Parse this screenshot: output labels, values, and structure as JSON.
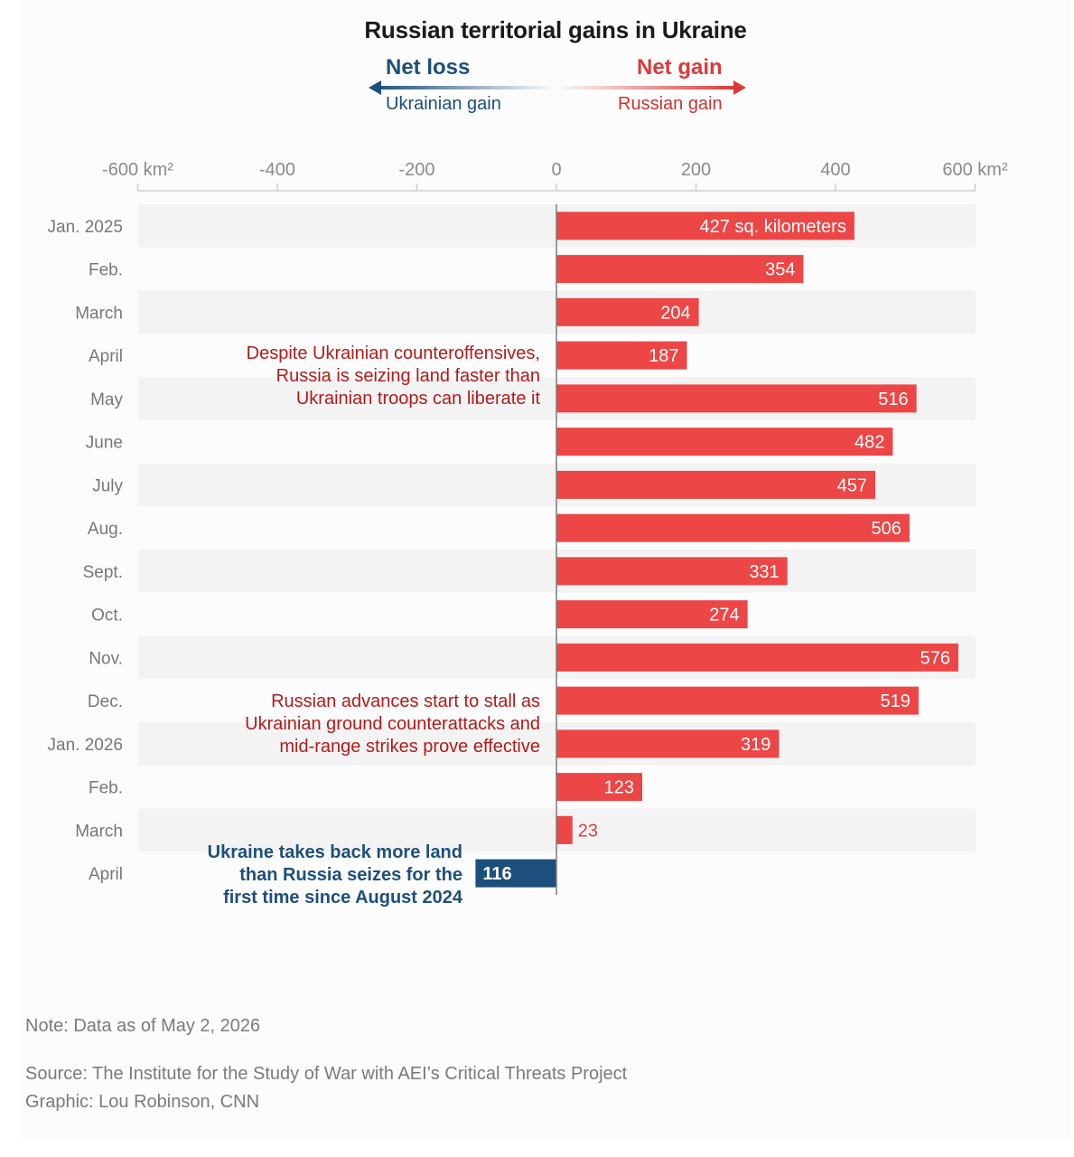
{
  "chart_data": {
    "type": "bar",
    "orientation": "horizontal",
    "title": "Russian territorial gains in Ukraine",
    "legend": {
      "loss_heading": "Net loss",
      "loss_sub": "Ukrainian gain",
      "gain_heading": "Net gain",
      "gain_sub": "Russian gain",
      "placement": "top-center"
    },
    "x_ticks": [
      "-600 km²",
      "-400",
      "-200",
      "0",
      "200",
      "400",
      "600 km²"
    ],
    "x_tick_values": [
      -600,
      -400,
      -200,
      0,
      200,
      400,
      600
    ],
    "xlim": [
      -600,
      600
    ],
    "categories": [
      "Jan. 2025",
      "Feb.",
      "March",
      "April",
      "May",
      "June",
      "July",
      "Aug.",
      "Sept.",
      "Oct.",
      "Nov.",
      "Dec.",
      "Jan. 2026",
      "Feb.",
      "March",
      "April"
    ],
    "values": [
      427,
      354,
      204,
      187,
      516,
      482,
      457,
      506,
      331,
      274,
      576,
      519,
      319,
      123,
      23,
      -116
    ],
    "value_labels": [
      "427 sq. kilometers",
      "354",
      "204",
      "187",
      "516",
      "482",
      "457",
      "506",
      "331",
      "274",
      "576",
      "519",
      "319",
      "123",
      "23",
      "116"
    ],
    "colors": {
      "gain": "#ec4646",
      "loss": "#1d4f7c",
      "gain_text": "#b01c1c",
      "loss_text": "#1d4f7c"
    },
    "annotations": [
      {
        "lines": [
          "Despite Ukrainian counteroffensives,",
          "Russia is seizing land faster than",
          "Ukrainian troops can liberate it"
        ],
        "color": "#b01c1c",
        "row": 4
      },
      {
        "lines": [
          "Russian advances start to stall as",
          "Ukrainian ground counterattacks and",
          "mid-range strikes prove effective"
        ],
        "color": "#b01c1c",
        "row": 12
      },
      {
        "lines": [
          "Ukraine takes back more land",
          "than Russia seizes for the",
          "first time since August 2024"
        ],
        "color": "#1d4f7c",
        "row": 15
      }
    ],
    "grid": false
  },
  "footer": {
    "note": "Note: Data as of May 2, 2026",
    "source": "Source: The Institute for the Study of War with AEI’s Critical Threats Project",
    "credit": "Graphic: Lou Robinson, CNN"
  }
}
